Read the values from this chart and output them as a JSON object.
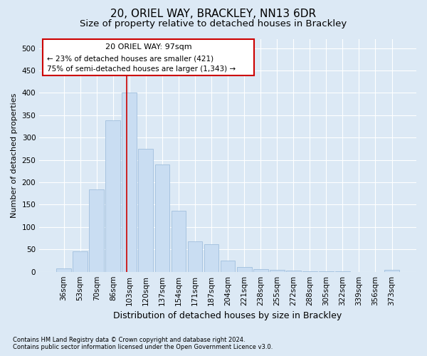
{
  "title1": "20, ORIEL WAY, BRACKLEY, NN13 6DR",
  "title2": "Size of property relative to detached houses in Brackley",
  "xlabel": "Distribution of detached houses by size in Brackley",
  "ylabel": "Number of detached properties",
  "footnote1": "Contains HM Land Registry data © Crown copyright and database right 2024.",
  "footnote2": "Contains public sector information licensed under the Open Government Licence v3.0.",
  "categories": [
    "36sqm",
    "53sqm",
    "70sqm",
    "86sqm",
    "103sqm",
    "120sqm",
    "137sqm",
    "154sqm",
    "171sqm",
    "187sqm",
    "204sqm",
    "221sqm",
    "238sqm",
    "255sqm",
    "272sqm",
    "288sqm",
    "305sqm",
    "322sqm",
    "339sqm",
    "356sqm",
    "373sqm"
  ],
  "values": [
    8,
    46,
    184,
    338,
    400,
    275,
    240,
    136,
    68,
    62,
    25,
    10,
    6,
    4,
    2,
    1,
    1,
    1,
    0,
    0,
    4
  ],
  "bar_color": "#c9ddf2",
  "bar_edge_color": "#a0bfdd",
  "vline_x": 3.82,
  "vline_color": "#cc0000",
  "annotation_line1": "20 ORIEL WAY: 97sqm",
  "annotation_line2": "← 23% of detached houses are smaller (421)",
  "annotation_line3": "75% of semi-detached houses are larger (1,343) →",
  "box_edge_color": "#cc0000",
  "ylim": [
    0,
    520
  ],
  "yticks": [
    0,
    50,
    100,
    150,
    200,
    250,
    300,
    350,
    400,
    450,
    500
  ],
  "bg_color": "#dce9f5",
  "plot_bg_color": "#dce9f5",
  "grid_color": "#ffffff",
  "title1_fontsize": 11,
  "title2_fontsize": 9.5,
  "xlabel_fontsize": 9,
  "ylabel_fontsize": 8,
  "tick_fontsize": 7.5
}
